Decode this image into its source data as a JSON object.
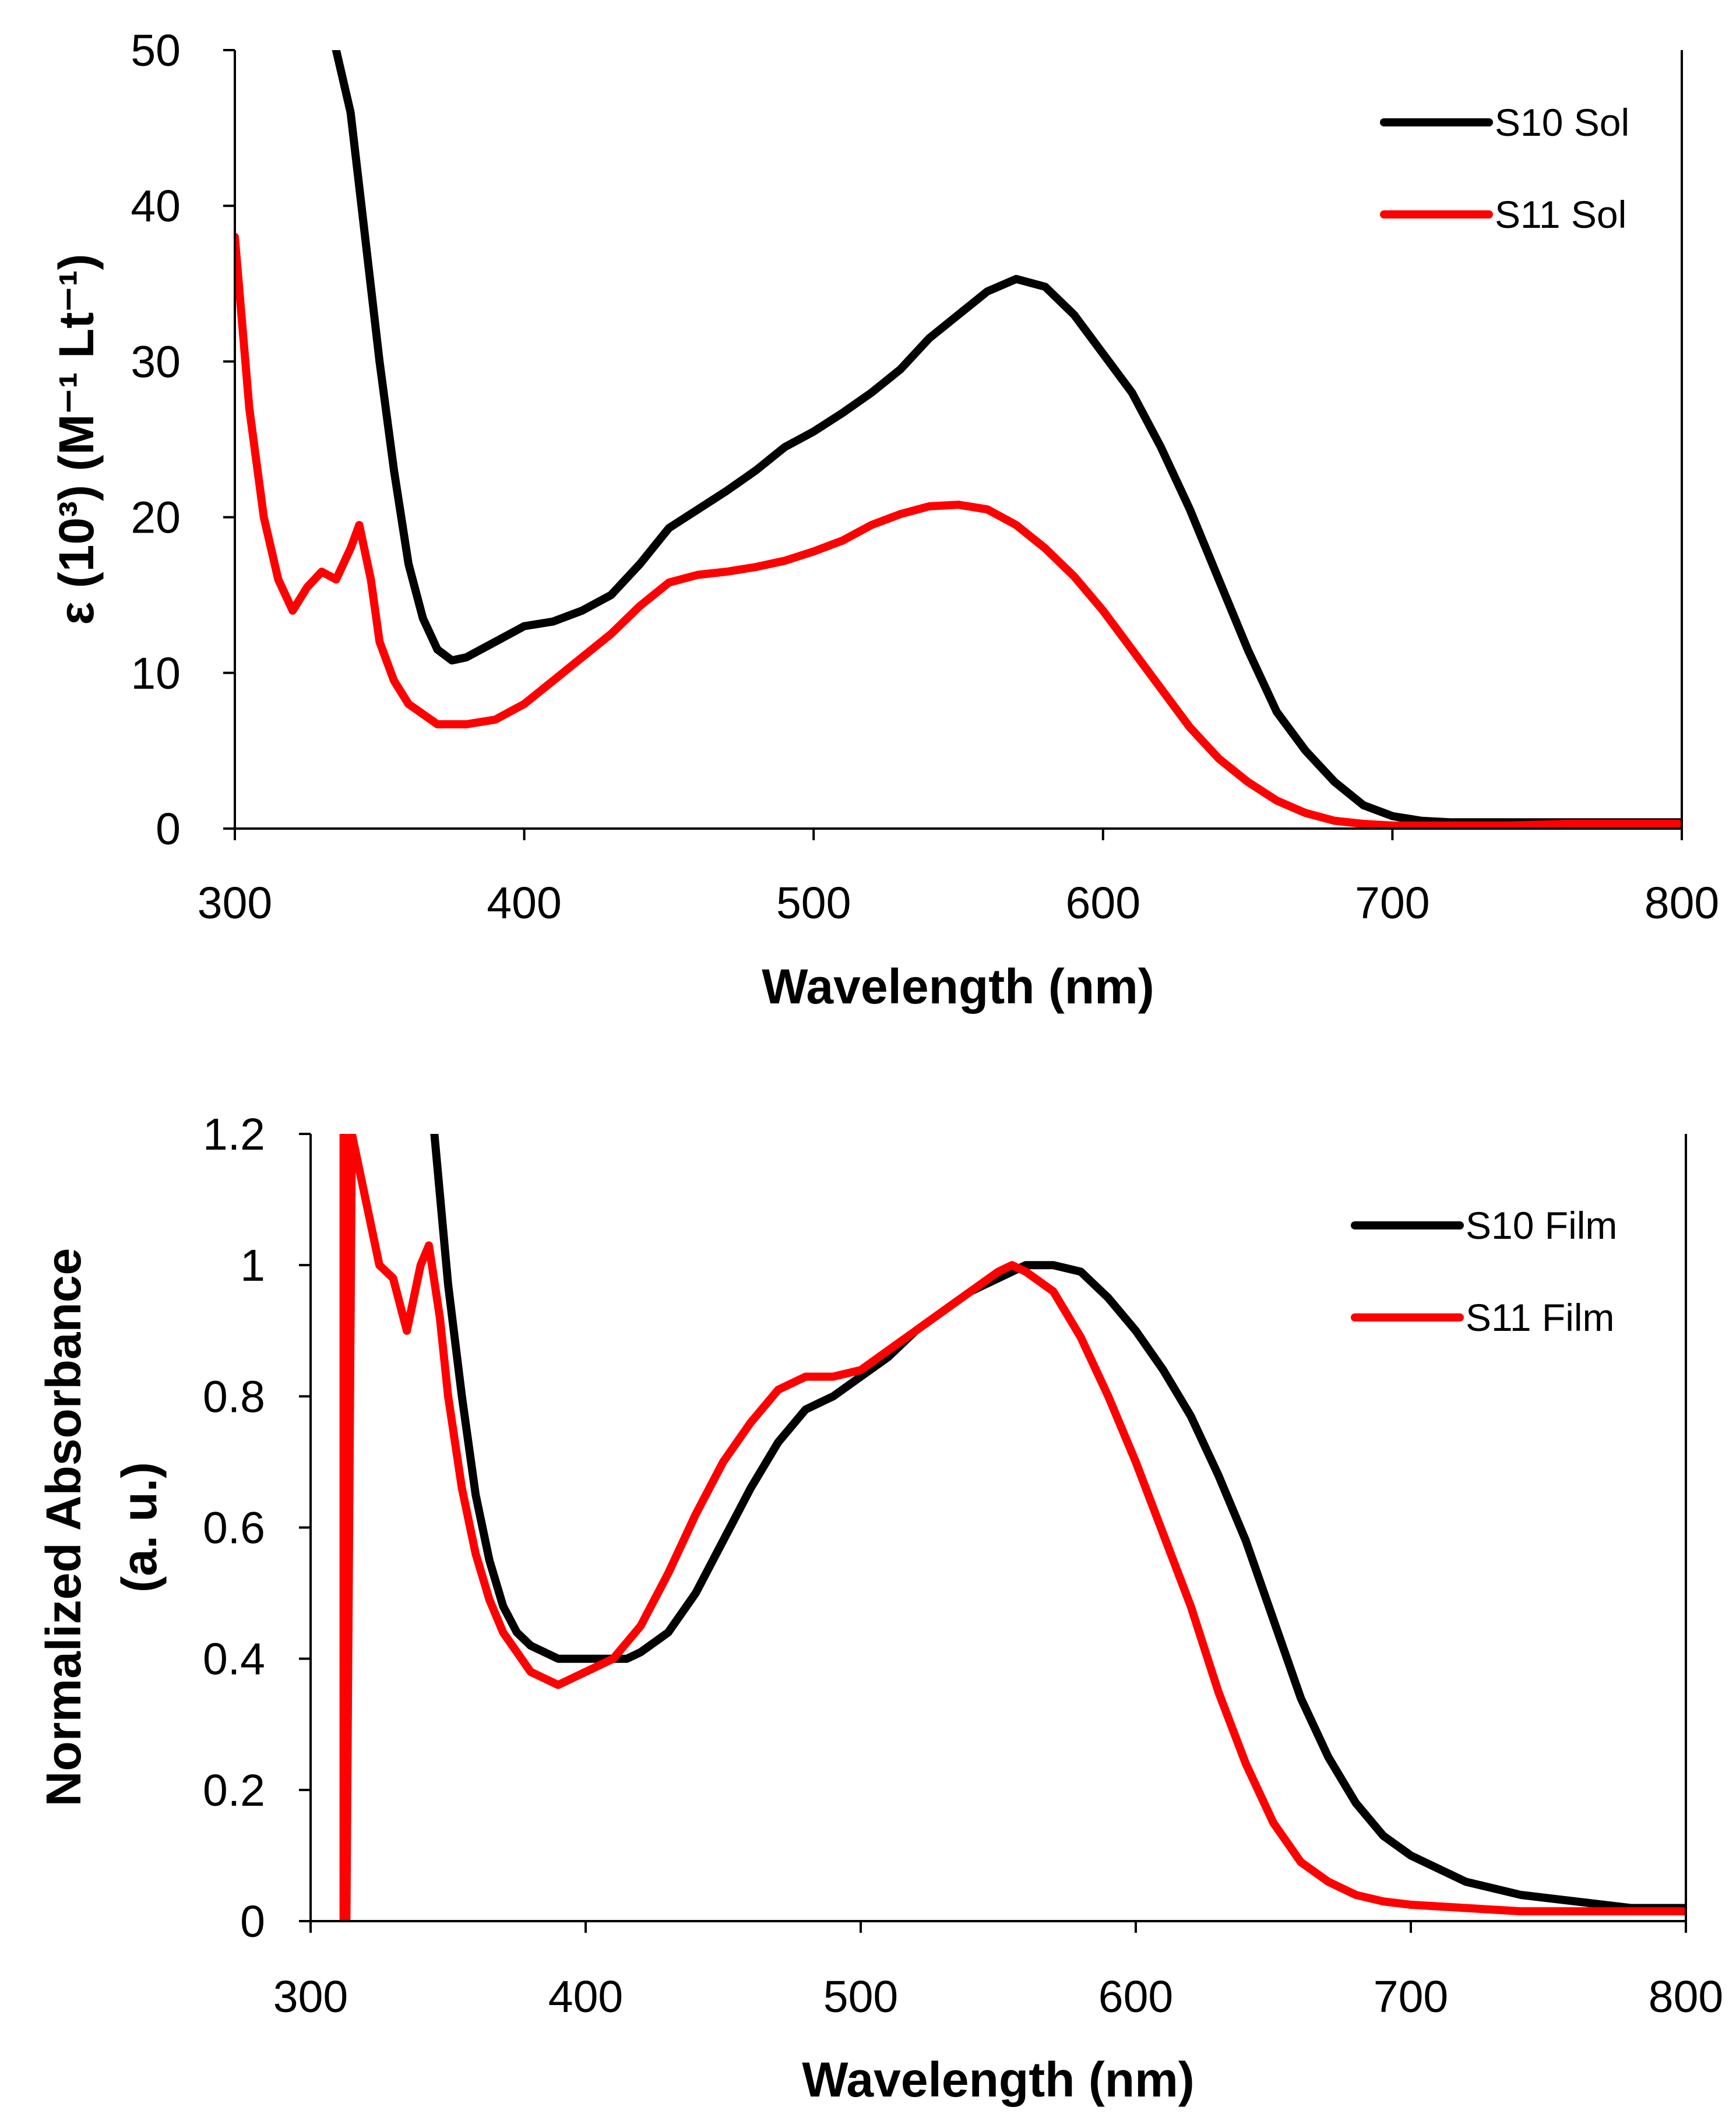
{
  "chart_data": [
    {
      "type": "line",
      "title": "",
      "xlabel": "Wavelength (nm)",
      "ylabel": "ε (10³) (M⁻¹ Lt⁻¹)",
      "xlim": [
        300,
        800
      ],
      "ylim": [
        0,
        50
      ],
      "xticks": [
        "300",
        "400",
        "500",
        "600",
        "700",
        "800"
      ],
      "yticks": [
        "0",
        "10",
        "20",
        "30",
        "40",
        "50"
      ],
      "legend_position": "top-right",
      "series": [
        {
          "name": "S10 Sol",
          "color": "#000000",
          "x": [
            335,
            340,
            345,
            350,
            355,
            360,
            365,
            370,
            375,
            380,
            390,
            400,
            410,
            420,
            430,
            440,
            450,
            460,
            470,
            480,
            490,
            500,
            510,
            520,
            530,
            540,
            550,
            560,
            570,
            580,
            590,
            600,
            610,
            620,
            630,
            640,
            650,
            660,
            670,
            680,
            690,
            700,
            710,
            720,
            740,
            760,
            780,
            800
          ],
          "values": [
            50,
            46,
            38,
            30,
            23,
            17,
            13.5,
            11.5,
            10.8,
            11,
            12,
            13,
            13.3,
            14,
            15,
            17,
            19.3,
            20.5,
            21.7,
            23,
            24.5,
            25.5,
            26.7,
            28,
            29.5,
            31.5,
            33,
            34.5,
            35.3,
            34.8,
            33,
            30.5,
            28,
            24.5,
            20.5,
            16,
            11.5,
            7.5,
            5,
            3,
            1.5,
            0.8,
            0.5,
            0.4,
            0.4,
            0.4,
            0.4,
            0.4
          ]
        },
        {
          "name": "S11 Sol",
          "color": "#ff0000",
          "x": [
            300,
            305,
            310,
            315,
            320,
            325,
            330,
            335,
            340,
            343,
            347,
            350,
            355,
            360,
            370,
            380,
            390,
            400,
            410,
            420,
            430,
            440,
            450,
            460,
            470,
            480,
            490,
            500,
            510,
            520,
            530,
            540,
            550,
            560,
            570,
            580,
            590,
            600,
            610,
            620,
            630,
            640,
            650,
            660,
            670,
            680,
            690,
            700,
            720,
            740,
            760,
            780,
            800
          ],
          "values": [
            38,
            27,
            20,
            16,
            14,
            15.5,
            16.5,
            16,
            18,
            19.5,
            16,
            12,
            9.5,
            8,
            6.7,
            6.7,
            7,
            8,
            9.5,
            11,
            12.5,
            14.3,
            15.8,
            16.3,
            16.5,
            16.8,
            17.2,
            17.8,
            18.5,
            19.5,
            20.2,
            20.7,
            20.8,
            20.5,
            19.5,
            18,
            16.2,
            14,
            11.5,
            9,
            6.5,
            4.5,
            3,
            1.8,
            1,
            0.5,
            0.3,
            0.2,
            0.2,
            0.2,
            0.3,
            0.3,
            0.3
          ]
        }
      ]
    },
    {
      "type": "line",
      "title": "",
      "xlabel": "Wavelength (nm)",
      "ylabel_lines": [
        "Normalized Absorbance",
        "(a. u.)"
      ],
      "xlim": [
        300,
        800
      ],
      "ylim": [
        0,
        1.2
      ],
      "xticks": [
        "300",
        "400",
        "500",
        "600",
        "700",
        "800"
      ],
      "yticks": [
        "0",
        "0.2",
        "0.4",
        "0.6",
        "0.8",
        "1",
        "1.2"
      ],
      "legend_position": "right",
      "series": [
        {
          "name": "S10 Film",
          "color": "#000000",
          "x": [
            345,
            350,
            355,
            360,
            365,
            370,
            375,
            380,
            385,
            390,
            400,
            410,
            415,
            420,
            430,
            440,
            450,
            460,
            470,
            480,
            490,
            500,
            510,
            520,
            530,
            540,
            550,
            560,
            570,
            580,
            590,
            600,
            610,
            620,
            630,
            640,
            650,
            660,
            670,
            680,
            690,
            700,
            710,
            720,
            740,
            760,
            780,
            800
          ],
          "values": [
            1.2,
            0.97,
            0.8,
            0.65,
            0.55,
            0.48,
            0.44,
            0.42,
            0.41,
            0.4,
            0.4,
            0.4,
            0.4,
            0.41,
            0.44,
            0.5,
            0.58,
            0.66,
            0.73,
            0.78,
            0.8,
            0.83,
            0.86,
            0.9,
            0.93,
            0.96,
            0.98,
            1.0,
            1.0,
            0.99,
            0.95,
            0.9,
            0.84,
            0.77,
            0.68,
            0.58,
            0.46,
            0.34,
            0.25,
            0.18,
            0.13,
            0.1,
            0.08,
            0.06,
            0.04,
            0.03,
            0.02,
            0.02
          ]
        },
        {
          "name": "S11 Film",
          "color": "#ff0000",
          "x": [
            312,
            312,
            313,
            313,
            315,
            320,
            325,
            330,
            335,
            340,
            343,
            347,
            350,
            355,
            360,
            365,
            370,
            375,
            380,
            385,
            390,
            395,
            400,
            410,
            420,
            430,
            440,
            450,
            460,
            470,
            480,
            490,
            500,
            510,
            520,
            530,
            540,
            550,
            555,
            560,
            570,
            580,
            590,
            600,
            610,
            620,
            630,
            640,
            650,
            660,
            670,
            680,
            690,
            700,
            720,
            740,
            760,
            780,
            800
          ],
          "values": [
            0,
            1.2,
            1.2,
            0,
            1.2,
            1.1,
            1.0,
            0.98,
            0.9,
            1.0,
            1.03,
            0.92,
            0.8,
            0.66,
            0.56,
            0.49,
            0.44,
            0.41,
            0.38,
            0.37,
            0.36,
            0.37,
            0.38,
            0.4,
            0.45,
            0.53,
            0.62,
            0.7,
            0.76,
            0.81,
            0.83,
            0.83,
            0.84,
            0.87,
            0.9,
            0.93,
            0.96,
            0.99,
            1.0,
            0.99,
            0.96,
            0.89,
            0.8,
            0.7,
            0.59,
            0.48,
            0.35,
            0.24,
            0.15,
            0.09,
            0.06,
            0.04,
            0.03,
            0.025,
            0.02,
            0.015,
            0.015,
            0.015,
            0.015
          ]
        }
      ]
    }
  ]
}
